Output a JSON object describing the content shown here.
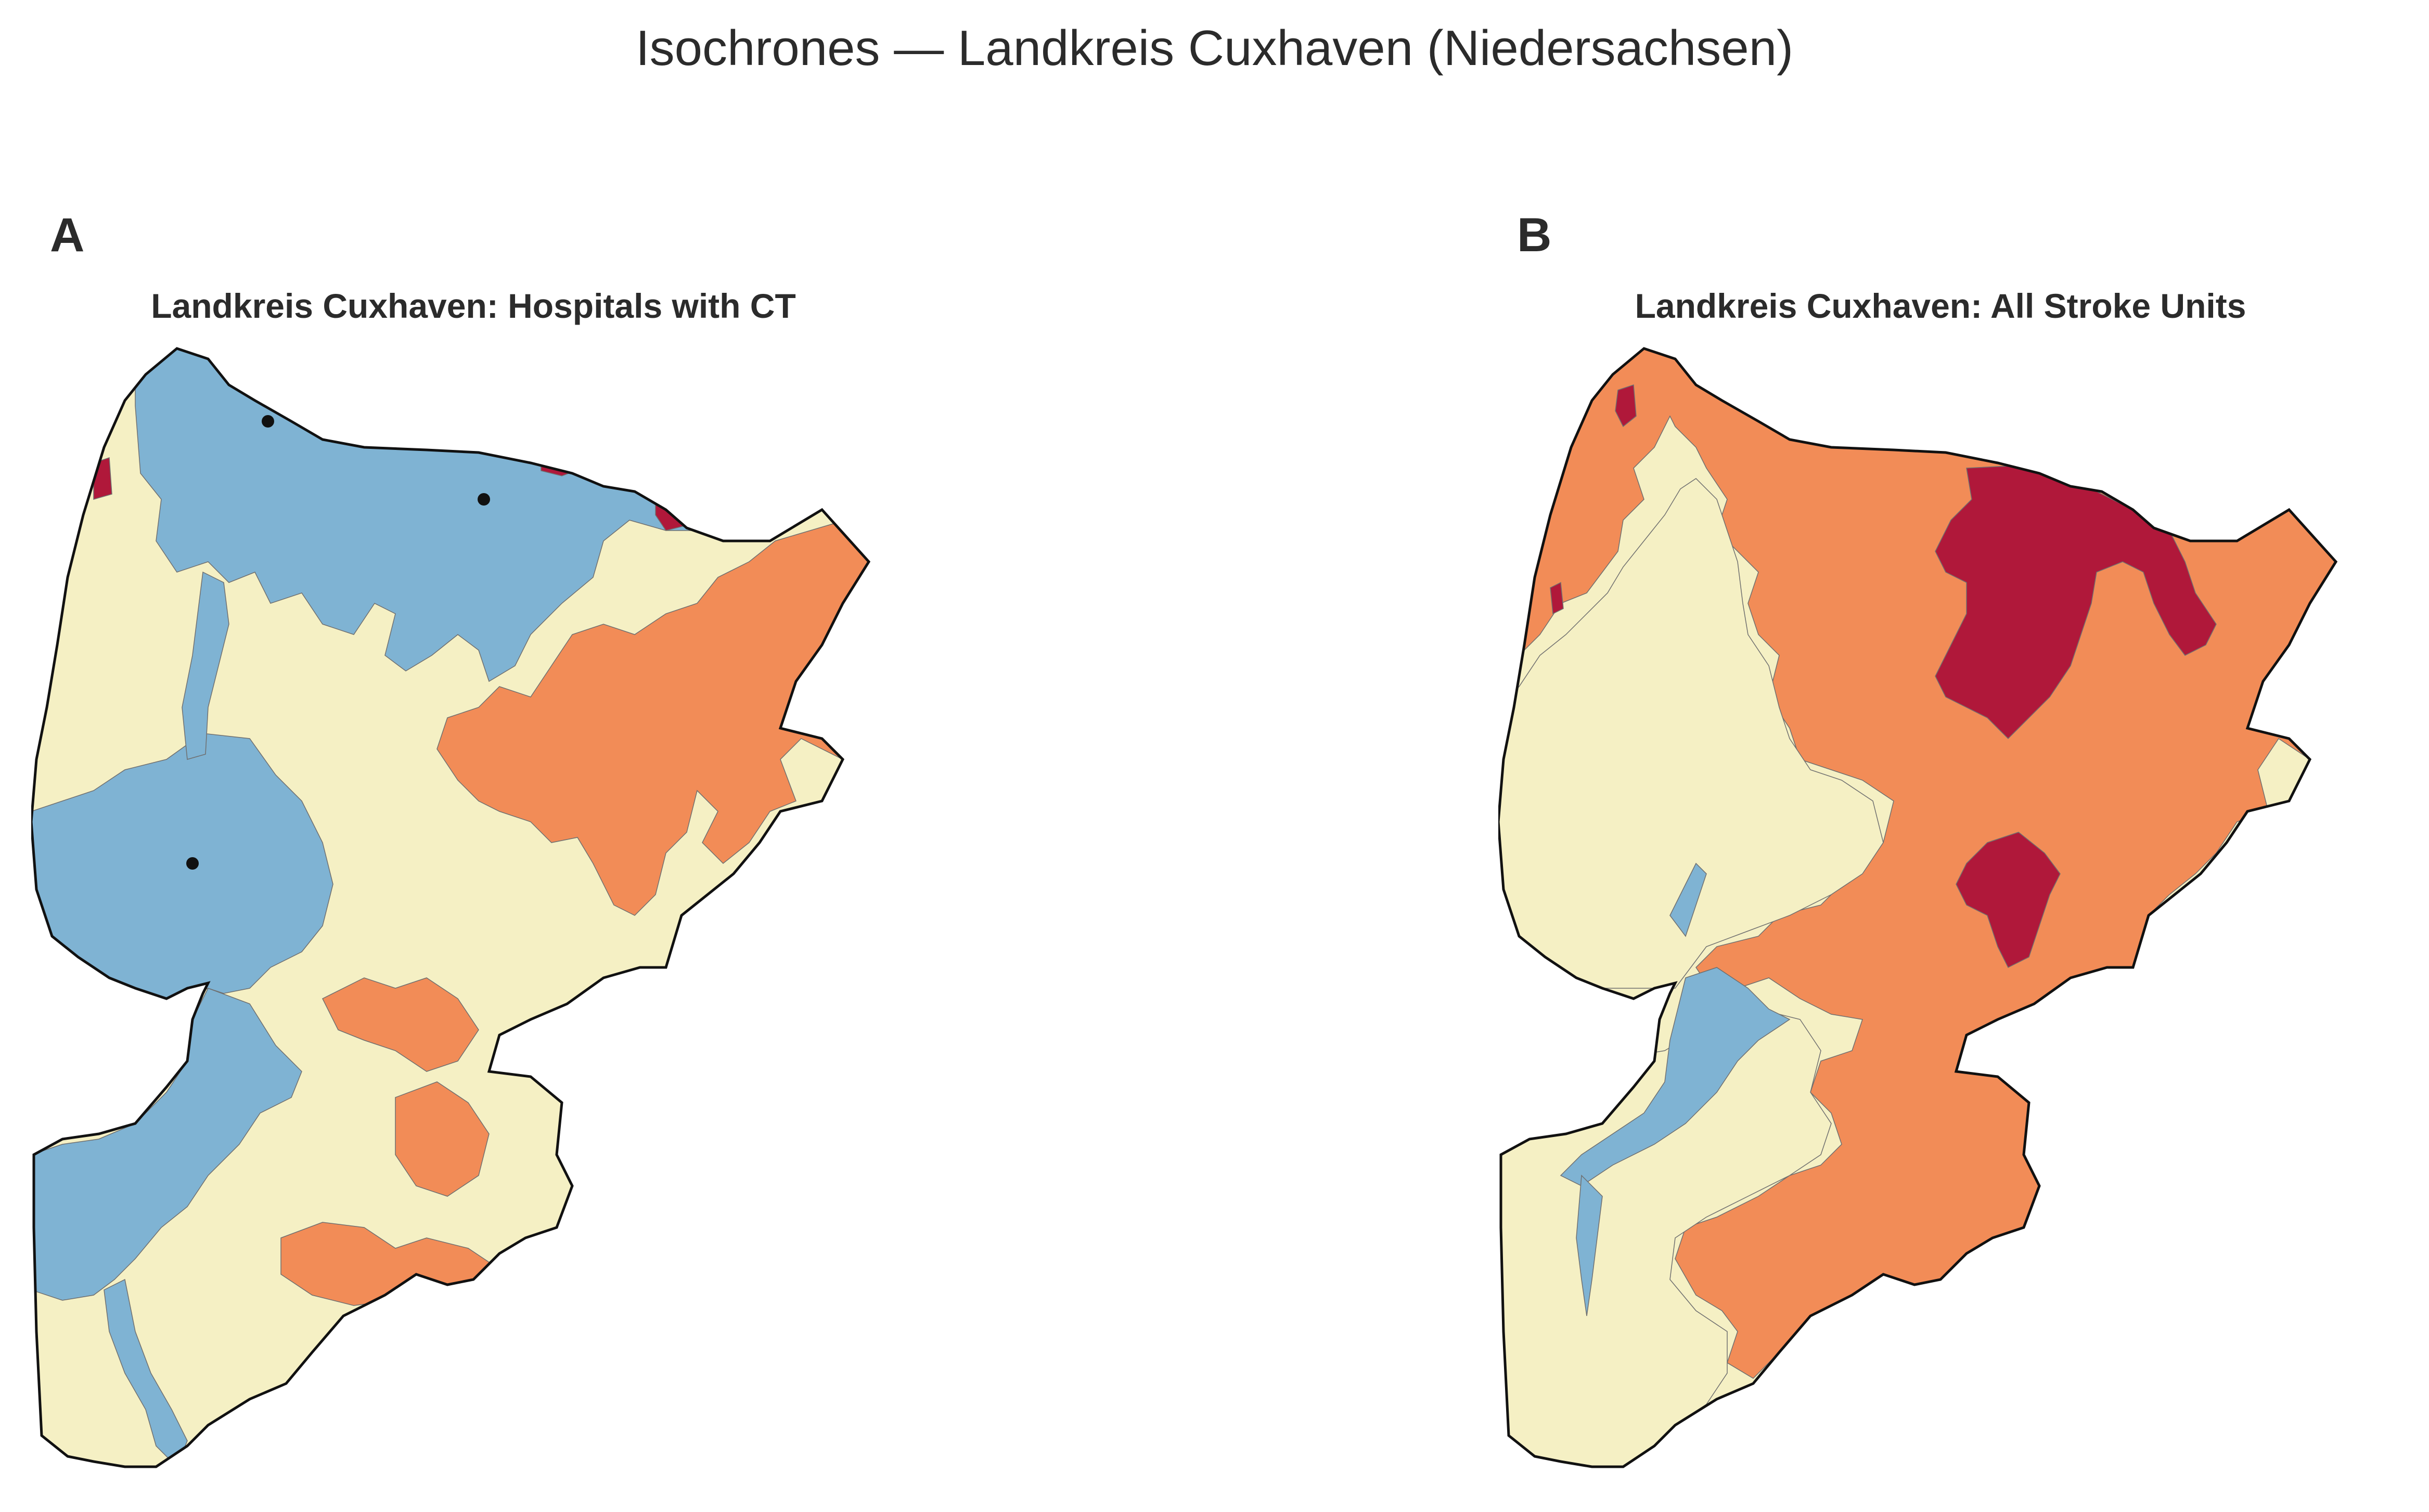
{
  "figure": {
    "suptitle": "Isochrones — Landkreis Cuxhaven (Niedersachsen)"
  },
  "panels": [
    {
      "letter": "A",
      "title": "Landkreis Cuxhaven: Hospitals with CT",
      "markers": 3
    },
    {
      "letter": "B",
      "title": "Landkreis Cuxhaven: All Stroke Units",
      "markers": 0
    }
  ],
  "colors": {
    "zone_nearest": "#7fb3d3",
    "zone_near": "#f5f0c4",
    "zone_far": "#f28c57",
    "zone_farthest": "#b0183a",
    "boundary": "#111111",
    "hospital_marker": "#111111"
  }
}
